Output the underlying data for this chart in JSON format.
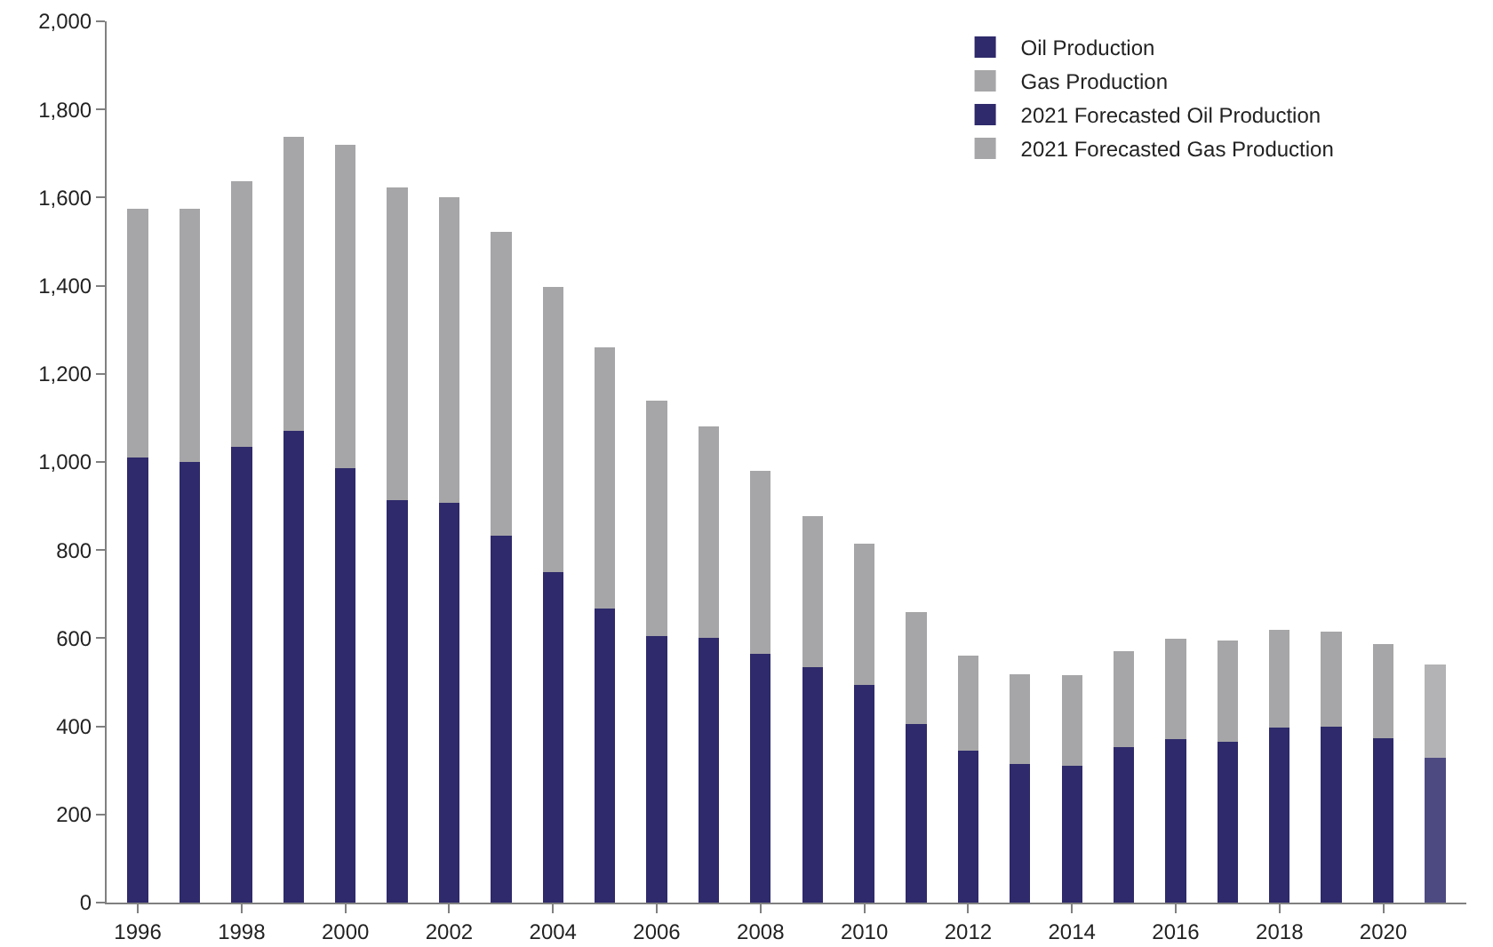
{
  "chart_data": {
    "type": "bar",
    "stacked": true,
    "categories": [
      "1996",
      null,
      "1998",
      null,
      "2000",
      null,
      "2002",
      null,
      "2004",
      null,
      "2006",
      null,
      "2008",
      null,
      "2010",
      null,
      "2012",
      null,
      "2014",
      null,
      "2016",
      null,
      "2018",
      null,
      "2020",
      null
    ],
    "series": [
      {
        "name": "Oil Production",
        "color": "#2e2a6b",
        "values": [
          1010,
          1000,
          1035,
          1070,
          985,
          913,
          908,
          833,
          750,
          668,
          605,
          600,
          565,
          535,
          493,
          405,
          345,
          315,
          310,
          352,
          370,
          365,
          397,
          400,
          373,
          null
        ]
      },
      {
        "name": "Gas Production",
        "color": "#a6a6a8",
        "values": [
          565,
          575,
          602,
          667,
          735,
          709,
          692,
          690,
          647,
          592,
          535,
          480,
          415,
          342,
          322,
          255,
          215,
          203,
          207,
          218,
          228,
          230,
          221,
          215,
          214,
          null
        ]
      },
      {
        "name": "2021 Forecasted Oil Production",
        "color": "#2e2a6b",
        "values": [
          null,
          null,
          null,
          null,
          null,
          null,
          null,
          null,
          null,
          null,
          null,
          null,
          null,
          null,
          null,
          null,
          null,
          null,
          null,
          null,
          null,
          null,
          null,
          null,
          null,
          328
        ]
      },
      {
        "name": "2021 Forecasted Gas Production",
        "color": "#a6a6a8",
        "values": [
          null,
          null,
          null,
          null,
          null,
          null,
          null,
          null,
          null,
          null,
          null,
          null,
          null,
          null,
          null,
          null,
          null,
          null,
          null,
          null,
          null,
          null,
          null,
          null,
          null,
          212
        ]
      }
    ],
    "ylim": [
      0,
      2000
    ],
    "yticks": [
      {
        "value": 0,
        "label": "0"
      },
      {
        "value": 200,
        "label": "200"
      },
      {
        "value": 400,
        "label": "400"
      },
      {
        "value": 600,
        "label": "600"
      },
      {
        "value": 800,
        "label": "800"
      },
      {
        "value": 1000,
        "label": "1,000"
      },
      {
        "value": 1200,
        "label": "1,200"
      },
      {
        "value": 1400,
        "label": "1,400"
      },
      {
        "value": 1600,
        "label": "1,600"
      },
      {
        "value": 1800,
        "label": "1,800"
      },
      {
        "value": 2000,
        "label": "2,000"
      }
    ],
    "grid": false,
    "legend": "top right"
  }
}
